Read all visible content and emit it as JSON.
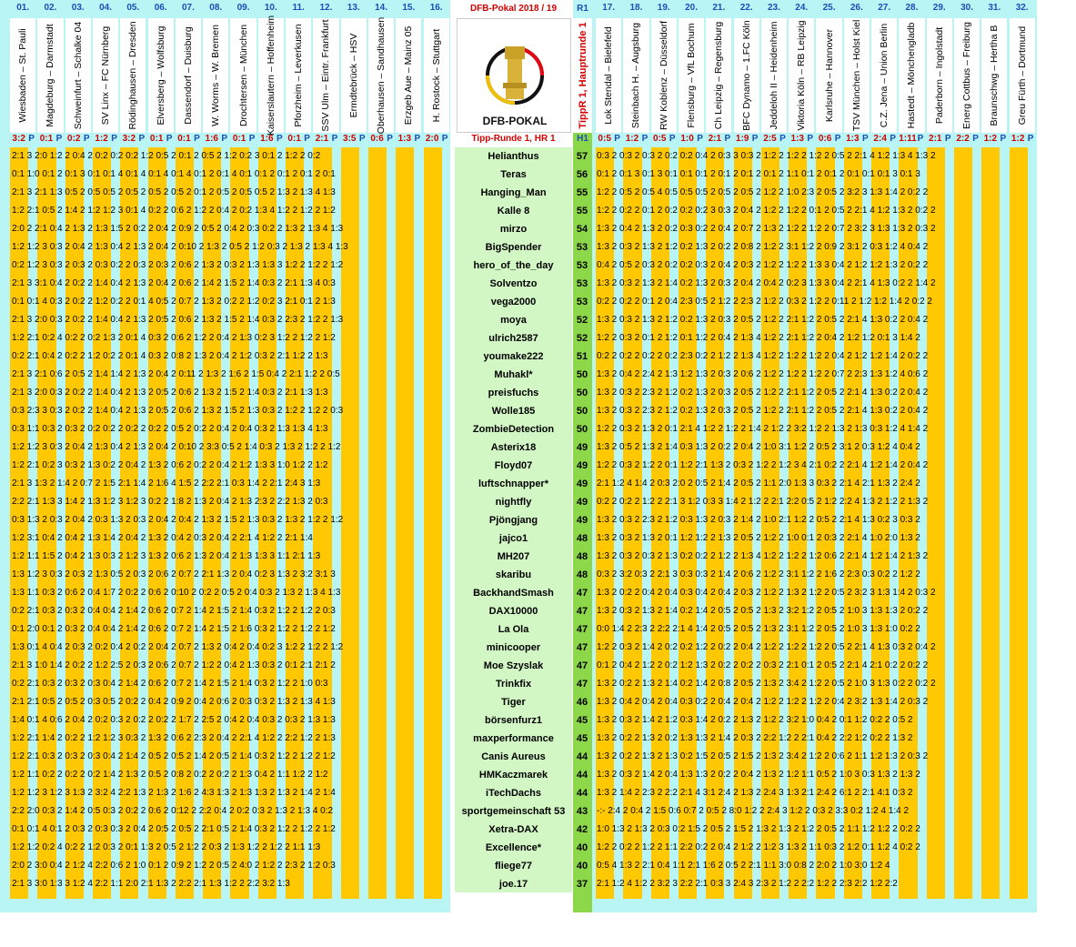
{
  "header": {
    "title": "DFB-Pokal 2018 / 19",
    "round_label": "Tipp-Runde 1,  HR 1",
    "side_top": "R1",
    "side_bottom": "H1",
    "vertical_title": "TippR 1,  Hauptrunde 1",
    "logo_text": "DFB-POKAL"
  },
  "points_header": "P",
  "matches_left": [
    {
      "no": "01.",
      "teams": "Wiesbaden – St. Pauli",
      "result": "3:2"
    },
    {
      "no": "02.",
      "teams": "Magdeburg – Darmstadt",
      "result": "0:1"
    },
    {
      "no": "03.",
      "teams": "Schweinfurt – Schalke 04",
      "result": "0:2"
    },
    {
      "no": "04.",
      "teams": "SV Linx – FC Nürnberg",
      "result": "1:2"
    },
    {
      "no": "05.",
      "teams": "Rödinghausen – Dresden",
      "result": "3:2"
    },
    {
      "no": "06.",
      "teams": "Elversberg – Wolfsburg",
      "result": "0:1"
    },
    {
      "no": "07.",
      "teams": "Dassendorf – Duisburg",
      "result": "0:1"
    },
    {
      "no": "08.",
      "teams": "W. Worms – W. Bremen",
      "result": "1:6"
    },
    {
      "no": "09.",
      "teams": "Drochtersen – München",
      "result": "0:1"
    },
    {
      "no": "10.",
      "teams": "Kaiserslautern – Hoffenheim",
      "result": "1:6"
    },
    {
      "no": "11.",
      "teams": "Pforzheim – Leverkusen",
      "result": "0:1"
    },
    {
      "no": "12.",
      "teams": "SSV Ulm – Eintr. Frankfurt",
      "result": "2:1"
    },
    {
      "no": "13.",
      "teams": "Ermdtebrück – HSV",
      "result": "3:5"
    },
    {
      "no": "14.",
      "teams": "Oberhausen – Sandhausen",
      "result": "0:6"
    },
    {
      "no": "15.",
      "teams": "Erzgeb Aue – Mainz 05",
      "result": "1:3"
    },
    {
      "no": "16.",
      "teams": "H. Rostock – Stuttgart",
      "result": "2:0"
    }
  ],
  "matches_right": [
    {
      "no": "17.",
      "teams": "Lok Stendal – Bielefeld",
      "result": "0:5"
    },
    {
      "no": "18.",
      "teams": "Steinbach H. – Augsburg",
      "result": "1:2"
    },
    {
      "no": "19.",
      "teams": "RW Koblenz – Düsseldorf",
      "result": "0:5"
    },
    {
      "no": "20.",
      "teams": "Flensburg – VfL Bochum",
      "result": "1:0"
    },
    {
      "no": "21.",
      "teams": "Ch Leipzig – Regensburg",
      "result": "2:1"
    },
    {
      "no": "22.",
      "teams": "BFC Dynamo – 1.FC Köln",
      "result": "1:9"
    },
    {
      "no": "23.",
      "teams": "Jeddeloh II – Heidenheim",
      "result": "2:5"
    },
    {
      "no": "24.",
      "teams": "Viktoria Köln – RB Leipzig",
      "result": "1:3"
    },
    {
      "no": "25.",
      "teams": "Karlsruhe – Hannover",
      "result": "0:6"
    },
    {
      "no": "26.",
      "teams": "TSV München – Holst Kiel",
      "result": "1:3"
    },
    {
      "no": "27.",
      "teams": "C.Z. Jena – Union Berlin",
      "result": "2:4"
    },
    {
      "no": "28.",
      "teams": "Hastedt – Mönchengladb",
      "result": "1:11"
    },
    {
      "no": "29.",
      "teams": "Paderborn – Ingolstadt",
      "result": "2:1"
    },
    {
      "no": "30.",
      "teams": "Energ Cottbus – Freiburg",
      "result": "2:2"
    },
    {
      "no": "31.",
      "teams": "Braunschwg – Hertha B",
      "result": "1:2"
    },
    {
      "no": "32.",
      "teams": "Greu Fürth – Dortmund",
      "result": "1:2"
    }
  ],
  "players": [
    {
      "name": "Helianthus",
      "total": "57",
      "left": "2:1 3  2:0     1:2 2  0:4 2  0:2     0:2     0:2     1:2     0:5 2  0:1 2  0:5 2  1:2     0:2 3  0:1 2  1:2 2  0:2",
      "right": "0:3 2  0:3 2  0:3 2  0:2     0:2     0:4 2  0:3 3  0:3 2  1:2 2  1:2 2  1:2 2  0:5 2  2:1 4  1:2     1:3 4  1:3 2"
    },
    {
      "name": "Teras",
      "total": "56",
      "left": "0:1     1:0     0:1 2  0:1 3  0:1     0:1 4  0:1 4  0:1 4  0:1 4  0:1 2  0:1 4  0:1     0:1 2  0:1 2  0:1 2  0:1",
      "right": "0:1 2  0:1 3  0:1 3  0:1     0:1     0:1 2  0:1 2  0:1 2  0:1 2  1:1     0:1 2  0:1 2  0:1     0:1     0:1 3  0:1 3"
    },
    {
      "name": "Hanging_Man",
      "total": "55",
      "left": "2:1 3  2:1     1:3     0:5 2  0:5     0:5 2  0:5 2  0:5 2  0:5 2  0:1 2  0:5 2  0:5     0:5 2  1:3 2  1:3 4  1:3",
      "right": "1:2 2  0:5 2  0:5 4  0:5     0:5     0:5 2  0:5 2  0:5 2  1:2 2  1:0     2:3 2  0:5 2  3:2 3  1:3     1:4 2  0:2 2"
    },
    {
      "name": "Kalle 8",
      "total": "55",
      "left": "1:2     2:1     0:5 2  1:4 2  1:2     1:2 3  0:1 4  0:2 2  0:6 2  1:2 2  0:4 2  0:2     1:3 4  1:2 2  1:2 2  1:2",
      "right": "1:2 2  0:2 2  0:1 2  0:2     0:2     0:2 3  0:3 2  0:4 2  1:2 2  1:2 2  0:1 2  0:5 2  2:1 4  1:2     1:3 2  0:2 2"
    },
    {
      "name": "mirzo",
      "total": "54",
      "left": "2:0 2  2:1     0:4 2  1:3 2  1:3     1:5 2  0:2 2  0:4 2  0:9 2  0:5 2  0:4 2  0:3     0:2 2  1:3 2  1:3 4  1:3",
      "right": "1:3 2  0:4 2  1:3 2  0:2     0:3     0:2 2  0:4 2  0:7 2  1:3 2  1:2 2  1:2 2  0:7 2  3:2 3  1:3     1:3 2  0:3 2"
    },
    {
      "name": "BigSpender",
      "total": "53",
      "left": "1:2     1:2 3  0:3 2  0:4 2  1:3     0:4 2  1:3 2  0:4 2  0:10 2  1:3 2  0:5 2  1:2     0:3 2  1:3 2  1:3 4  1:3",
      "right": "1:3 2  0:3 2  1:3 2  1:2     0:2     1:3 2  0:2 2  0:8 2  1:2 2  3:1     1:2 2  0:9 2  3:1 2  0:3     1:2 4  0:4 2"
    },
    {
      "name": "hero_of_the_day",
      "total": "53",
      "left": "0:2     1:2 3  0:3 2  0:3 2  0:3     0:2 2  0:3 2  0:3 2  0:6 2  1:3 2  0:3 2  1:3     1:3 3  1:2 2  1:2 2  1:2",
      "right": "0:4 2  0:5 2  0:3 2  0:2     0:2     0:3 2  0:4 2  0:3 2  1:2 2  1:2 2  1:3 3  0:4 2  1:2     1:2     1:3 2  0:2 2"
    },
    {
      "name": "Solventzo",
      "total": "53",
      "left": "2:1 3  3:1     0:4 2  0:2 2  1:4     0:4 2  1:3 2  0:4 2  0:6 2  1:4 2  1:5 2  1:4     0:3 2  2:1     1:3 4  0:3",
      "right": "1:3 2  0:3 2  1:3 2  1:4     0:2     1:3 2  0:3 2  0:4 2  0:4 2  0:2 3  1:3 3  0:4 2  2:1 4  1:3     0:2 2  1:4 2"
    },
    {
      "name": "vega2000",
      "total": "53",
      "left": "0:1     0:1 4  0:3 2  0:2 2  1:2     0:2 2  0:1 4  0:5 2  0:7 2  1:3 2  0:2 2  1:2     0:2 3  2:1     0:1 2  1:3",
      "right": "0:2 2  0:2 2  0:1 2  0:4     2:3     0:5 2  1:2 2  2:3 2  1:2 2  0:3 2  1:2 2  0:11 2  1:2     1:2     1:4 2  0:2 2"
    },
    {
      "name": "moya",
      "total": "52",
      "left": "2:1 3  2:0     0:3 2  0:2 2  1:4     0:4 2  1:3 2  0:5 2  0:6 2  1:3 2  1:5 2  1:4     0:3 2  2:3 2  1:2 2  1:3",
      "right": "1:3 2  0:3 2  1:3 2  1:2     0:2     1:3 2  0:3 2  0:5 2  1:2 2  2:1     1:2 2  0:5 2  2:1 4  1:3     0:2 2  0:4 2"
    },
    {
      "name": "ulrich2587",
      "total": "52",
      "left": "1:2     2:1     0:2 4  0:2 2  0:2     1:3 2  0:1 4  0:3 2  0:6 2  1:2 2  0:4 2  1:3     0:2 3  1:2 2  1:2 2  1:2",
      "right": "1:2 2  0:3 2  0:1 2  1:2     0:1     1:2 2  0:4 2  1:3 4  1:2 2  2:1     1:2 2  0:4 2  1:2     1:2     0:1 3  1:4 2"
    },
    {
      "name": "youmake222",
      "total": "51",
      "left": "0:2     2:1     0:4 2  0:2 2  1:2     0:2 2  0:1 4  0:3 2  0:8 2  1:3 2  0:4 2  1:2     0:3 2  2:1     1:2 2  1:3",
      "right": "0:2 2  0:2 2  0:2 2  0:2     2:3     0:2 2  1:2 2  1:3 4  1:2 2  1:2 2  1:2 2  0:4 2  1:2     1:2     1:4 2  0:2 2"
    },
    {
      "name": "Muhakl*",
      "total": "50",
      "left": "2:1 3  2:1     0:6 2  0:5 2  1:4     1:4 2  1:3 2  0:4 2  0:11 2  1:3 2  1:6 2  1:5     0:4 2  2:1     1:2 2  0:5",
      "right": "1:3 2  0:4 2  2:4 2  1:3     1:2     1:3 2  0:3 2  0:6 2  1:2 2  1:2 2  1:2 2  0:7 2  2:3     1:3     1:2 4  0:6 2"
    },
    {
      "name": "preisfuchs",
      "total": "50",
      "left": "2:1 3  2:0     0:3 2  0:2 2  1:4     0:4 2  1:3 2  0:5 2  0:6 2  1:3 2  1:5 2  1:4     0:3 2  2:1     1:3     1:3",
      "right": "1:3 2  0:3 2  2:3 2  1:2     0:2     1:3 2  0:3 2  0:5 2  1:2 2  2:1     1:2 2  0:5 2  2:1 4  1:3     0:2 2  0:4 2"
    },
    {
      "name": "Wolle185",
      "total": "50",
      "left": "0:3     2:3 3  0:3 2  0:2 2  1:4     0:4 2  1:3 2  0:5 2  0:6 2  1:3 2  1:5 2  1:3     0:3 2  1:2 2  1:2 2  0:3",
      "right": "1:3 2  0:3 2  2:3 2  1:2     0:2     1:3 2  0:3 2  0:5 2  1:2 2  2:1     1:2 2  0:5 2  2:1 4  1:3     0:2 2  0:4 2"
    },
    {
      "name": "ZombieDetection",
      "total": "50",
      "left": "0:3     1:1     0:3 2  0:3 2  0:2     0:2 2  0:2 2  0:2 2  0:5 2  0:2 2  0:4 2  0:4     0:3 2  1:3     1:3 4  1:3",
      "right": "1:2 2  0:3 2  1:3 2  0:1     2:1 4  1:2 2  1:2 2  1:4 2  1:2 2  3:2     1:2 2  1:3 2  1:3     0:3     1:2 4  1:4 2"
    },
    {
      "name": "Asterix18",
      "total": "49",
      "left": "1:2     1:2 3  0:3 2  0:4 2  1:3     0:4 2  1:3 2  0:4 2  0:10 2  3:3     0:5 2  1:4     0:3 2  1:3 2  1:2 2  1:2",
      "right": "1:3 2  0:5 2  1:3 2  1:4     0:3     1:3 2  0:2 2  0:4 2  1:0     3:1     1:2 2  0:5 2  3:1 2  0:3     1:2 4  0:4 2"
    },
    {
      "name": "Floyd07",
      "total": "49",
      "left": "1:2     2:1     0:2 3  0:3 2  1:3     0:2 2  0:4 2  1:3 2  0:6 2  0:2 2  0:4 2  1:2     1:3 3  1:0     1:2 2  1:2",
      "right": "1:2 2  0:3 2  1:2 2  0:1     1:2     2:1     1:3 2  0:3 2  1:2 2  1:2 3  4  2:1     0:2 2  2:1 4  1:2     1:4 2  0:4 2"
    },
    {
      "name": "luftschnapper*",
      "total": "49",
      "left": "2:1 3  1:3 2  1:4 2  0:7 2  1:5     2:1     1:4 2  1:6 4  1:5 2  2:2     2:1     0:3     1:4 2  2:1     2:4 3  1:3",
      "right": "2:1     1:2 4  1:4 2  0:3     2:0 2  0:5 2  1:4 2  0:5 2  1:1     2:0     1:3 3  0:3 2  2:1 4  2:1     1:3 2  2:4 2"
    },
    {
      "name": "nightfly",
      "total": "49",
      "left": "2:2     2:1     1:3 3  1:4 2  1:3     1:2 3  1:2 3  0:2 2  1:8 2  1:3 2  0:4 2  1:3     2:3 2  2:2     1:3 2  0:3",
      "right": "0:2 2  0:2 2  1:2 2  2:1 3  1:2     0:3 3  1:4 2  1:2 2  2:1     2:2     0:5 2  1:2     2:2 4  1:3 2  1:2 2  1:3 2"
    },
    {
      "name": "Pjöngjang",
      "total": "49",
      "left": "0:3     1:3 2  0:3 2  0:4 2  0:3     1:3 2  0:3 2  0:4 2  0:4 2  1:3 2  1:5 2  1:3     0:3 2  1:3 2  1:2 2  1:2",
      "right": "1:3 2  0:3 2  2:3 2  1:2     0:3     1:3 2  0:3 2  1:4 2  1:0     2:1     1:2 2  0:5 2  2:1 4  1:3     0:2 3  0:3 2"
    },
    {
      "name": "jajco1",
      "total": "48",
      "left": "1:2     3:1     0:4 2  0:4 2  1:3     1:4 2  0:4 2  1:3 2  0:4 2  0:3 2  0:4 2  2:1 4  1:2 2  2:1     1:4",
      "right": "1:3 2  0:3 2  1:3 2  0:1     1:2     1:2 2  1:3 2  0:5 2  1:2 2  1:0     0:1 2  0:3 2  2:1 4  1:0     2:0     1:3 2"
    },
    {
      "name": "MH207",
      "total": "48",
      "left": "1:2     1:1     1:5 2  0:4 2  1:3     0:3 2  1:2 3  1:3 2  0:6 2  1:3 2  0:4 2  1:3     1:3 3  1:1     2:1     1:3",
      "right": "1:3 2  0:3 2  0:3 2  1:3     0:2     0:2 2  1:2 2  1:3 4  1:2 2  1:2 2  1:2     0:6 2  2:1 4  1:2     1:4 2  1:3 2"
    },
    {
      "name": "skaribu",
      "total": "48",
      "left": "1:3     1:2 3  0:3 2  0:3 2  1:3     0:5 2  0:3 2  0:6 2  0:7 2  2:1     1:3 2  0:4     0:2 3  1:3 2  3:2     3:1 3",
      "right": "0:3 2  3:2     0:3 2  2:1 3  0:3     0:3 2  1:4 2  0:6 2  1:2 2  3:1     1:2 2  1:6 2  2:3     0:3     0:2 2  1:2 2"
    },
    {
      "name": "BackhandSmash",
      "total": "47",
      "left": "1:3     1:1     0:3 2  0:6 2  0:4     1:7 2  0:2 2  0:6 2  0:10 2  0:2 2  0:5 2  0:4     0:3 2  1:3 2  1:3 4  1:3",
      "right": "1:3 2  0:2 2  0:4 2  0:4     0:3     0:4 2  0:4 2  0:3 2  1:2 2  1:3 2  1:2 2  0:5 2  3:2 3  1:3     1:4 2  0:3 2"
    },
    {
      "name": "DAX10000",
      "total": "47",
      "left": "0:2     2:1     0:3 2  0:3 2  0:4     0:4 2  1:4 2  0:6 2  0:7 2  1:4 2  1:5 2  1:4     0:3 2  1:2 2  1:2 2  0:3",
      "right": "1:3 2  0:3 2  1:3 2  1:4     0:2     1:4 2  0:5 2  0:5 2  1:3 2  3:2     1:2 2  0:5 2  1:0 3  1:3     1:3 2  0:2 2"
    },
    {
      "name": "La Ola",
      "total": "47",
      "left": "0:1     2:0     0:1 2  0:3 2  0:4     0:4 2  1:4 2  0:6 2  0:7 2  1:4 2  1:5 2  1:6     0:3 2  1:2 2  1:2 2  1:2",
      "right": "0:0     1:4 2  2:3 2  2:2     2:1 4  1:4 2  0:5 2  0:5 2  1:3 2  3:1     1:2 2  0:5 2  1:0 3  1:3     1:0     0:2 2"
    },
    {
      "name": "minicooper",
      "total": "47",
      "left": "1:3     0:1 4  0:4 2  0:3 2  0:2     0:4 2  0:2 2  0:4 2  0:7 2  1:3 2  0:4 2  0:4     0:2 3  1:2 2  1:2 2  1:2",
      "right": "1:2 2  0:3 2  1:4 2  0:2     0:2     1:2 2  0:2 2  0:4 2  1:2 2  1:2 2  1:2 2  0:5 2  2:1 4  1:3     0:3 2  0:4 2"
    },
    {
      "name": "Moe Szyslak",
      "total": "47",
      "left": "2:1 3  1:0     1:4 2  0:2 2  1:2     2:5 2  0:3 2  0:6 2  0:7 2  1:2 2  0:4 2  1:3     0:3 2  0:1     2:1     2:1 2",
      "right": "0:1 2  0:4 2  1:2 2  0:2     1:2     1:3 2  0:2 2  0:2 2  0:3 2  2:1     0:1 2  0:5 2  2:1 4  2:1     0:2 2  0:2 2"
    },
    {
      "name": "Trinkfix",
      "total": "47",
      "left": "0:2     2:1     0:3 2  0:3 2  0:3     0:4 2  1:4 2  0:6 2  0:7 2  1:4 2  1:5 2  1:4     0:3 2  1:2 2  1:0     0:3",
      "right": "1:3 2  0:2 2  1:3 2  1:4     0:2     1:4 2  0:8 2  0:5 2  1:3 2  3:4 2  1:2 2  0:5 2  1:0 3  1:3     0:2 2  0:2 2"
    },
    {
      "name": "Tiger",
      "total": "46",
      "left": "2:1     2:1     0:5 2  0:5 2  0:3     0:5 2  0:2 2  0:4 2  0:9 2  0:4 2  0:6 2  0:3     0:3 2  1:3 2  1:3 4  1:3",
      "right": "1:3 2  0:4 2  0:4 2  0:4     0:3     0:2 2  0:4 2  0:4 2  1:2 2  1:2 2  1:2 2  0:4 2  3:2     1:3     1:4 2  0:3 2"
    },
    {
      "name": "börsenfurz1",
      "total": "45",
      "left": "1:4     0:1 4  0:6 2  0:4 2  0:2     0:3 2  0:2 2  0:2 2  1:7 2  2:5 2  0:4 2  0:4     0:3 2  0:3 2  1:3     1:3",
      "right": "1:3 2  0:3 2  1:4 2  1:2     0:3     1:4 2  0:2 2  1:3 2  1:2 2  3:2     1:0     0:4 2  0:1     1:2     0:2 2  0:5 2"
    },
    {
      "name": "maxperformance",
      "total": "45",
      "left": "1:2     2:1     1:4 2  0:2 2  1:2     1:2 3  0:3 2  1:3 2  0:6 2  2:3 2  0:4 2  2:1 4  1:2 2  2:2     1:2 2  1:3",
      "right": "1:3 2  0:2 2  1:3 2  0:2     1:3     1:3 2  1:4 2  0:3 2  2:2     1:2 2  2:1     0:4 2  2:2     1:2     0:2 2  1:3 2"
    },
    {
      "name": "Canis Aureus",
      "total": "44",
      "left": "1:2     2:1     0:3 2  0:3 2  0:3     0:4 2  1:4 2  0:5 2  0:5 2  1:4 2  0:5 2  1:4     0:3 2  1:2 2  1:2 2  1:2",
      "right": "1:3 2  0:2 2  1:3 2  1:3     0:2     1:5 2  0:5 2  1:5 2  1:3 2  3:4 2  1:2 2  0:6 2  1:1     1:2     1:3 2  0:3 2"
    },
    {
      "name": "HMKaczmarek",
      "total": "44",
      "left": "1:2     1:1     0:2 2  0:2 2  0:2     1:4 2  1:3 2  0:5 2  0:8 2  0:2 2  0:2 2  1:3     0:4 2  1:1     1:2 2  1:2",
      "right": "1:3 2  0:3 2  1:4 2  0:4     1:3     1:3 2  0:2 2  0:4 2  1:3 2  1:2     1:1     0:5 2  1:0 3  0:3     1:3 2  1:3 2"
    },
    {
      "name": "iTechDachs",
      "total": "44",
      "left": "1:2     1:2 3  1:2 3  1:3 2  3:2 4  2:2     1:3 2  1:3 2  1:6 2  4:3     1:3 2  1:3     1:3 2  1:3 2  1:4 2  1:4",
      "right": "1:3 2  1:4 2  2:3 2  2:2     2:1 4  3:1     2:4 2  1:3 2  2:4 3  1:3     2:1     2:4 2  6:1 2  2:1     4:1     0:3 2"
    },
    {
      "name": "sportgemeinschaft 53",
      "total": "43",
      "left": "2:2     2:0     0:3 2  1:4 2  0:5     0:3 2  0:2 2  0:6 2  0:12 2  2:2     0:4 2  0:2     0:3 2  1:3 2  1:3 4  0:2",
      "right": "-:-     2:4 2  0:4 2  1:5     0:6     0:7 2  0:5 2  8:0     1:2 2  2:4 3  1:2 2  0:3 2  3:3     0:2     1:2 4  1:4 2"
    },
    {
      "name": "Xetra-DAX",
      "total": "42",
      "left": "0:1     0:1 4  0:1 2  0:3 2  0:3     0:3 2  0:4 2  0:5 2  0:5 2  2:1     0:5 2  1:4     0:3 2  1:2 2  1:2 2  1:2",
      "right": "1:0     1:3 2  1:3 2  0:3     0:2     1:5 2  0:5 2  1:5 2  1:3 2  1:3 2  1:2 2  0:5 2  1:1     1:2     1:2 2  0:2 2"
    },
    {
      "name": "Excellence*",
      "total": "40",
      "left": "1:2     1:2     0:2 4  0:2 2  1:2     0:3 2  0:1     1:3 2  0:5 2  1:2 2  0:3 2  1:3     1:2 2  1:2 2  1:1     1:3",
      "right": "1:2 2  0:2 2  1:2 2  1:1     2:2     0:2 2  0:4 2  1:2 2  1:2 3  1:3 2  1:1     0:3 2  1:2     0:1     1:2 4  0:2 2"
    },
    {
      "name": "fliege77",
      "total": "40",
      "left": "2:0 2  3:0     0:4 2  1:2 4  2:2     0:6 2  1:0     0:1 2  0:9 2  1:2 2  0:5 2  4:0 2  1:2 2  2:3 2  1:2     0:3",
      "right": "0:5 4  1:3 2  2:1     0:4     1:1     2:1     1:6 2  0:5 2  2:1     1:1     3:0     0:8 2  2:0 2  1:0     3:0     1:2 4"
    },
    {
      "name": "joe.17",
      "total": "37",
      "left": "2:1 3  3:0     1:3 3  1:2 4  2:2     1:1     2:0     2:1     1:3 2  2:2     2:1     1:3     1:2 2  2:2     3:2     1:3",
      "right": "2:1     1:2 4  1:2 2  3:2 3  2:2     2:1     0:3 3  2:4 3  2:3 2  1:2 2  2:2     1:2 2  2:3     2:2     1:2     2:2"
    }
  ],
  "colors": {
    "cyan": "#b9f5f5",
    "yellow": "#ffc800",
    "green": "#d2f7c4",
    "total_green": "#8cd84a",
    "result_red": "#d40000",
    "header_blue": "#1a4fb5"
  }
}
